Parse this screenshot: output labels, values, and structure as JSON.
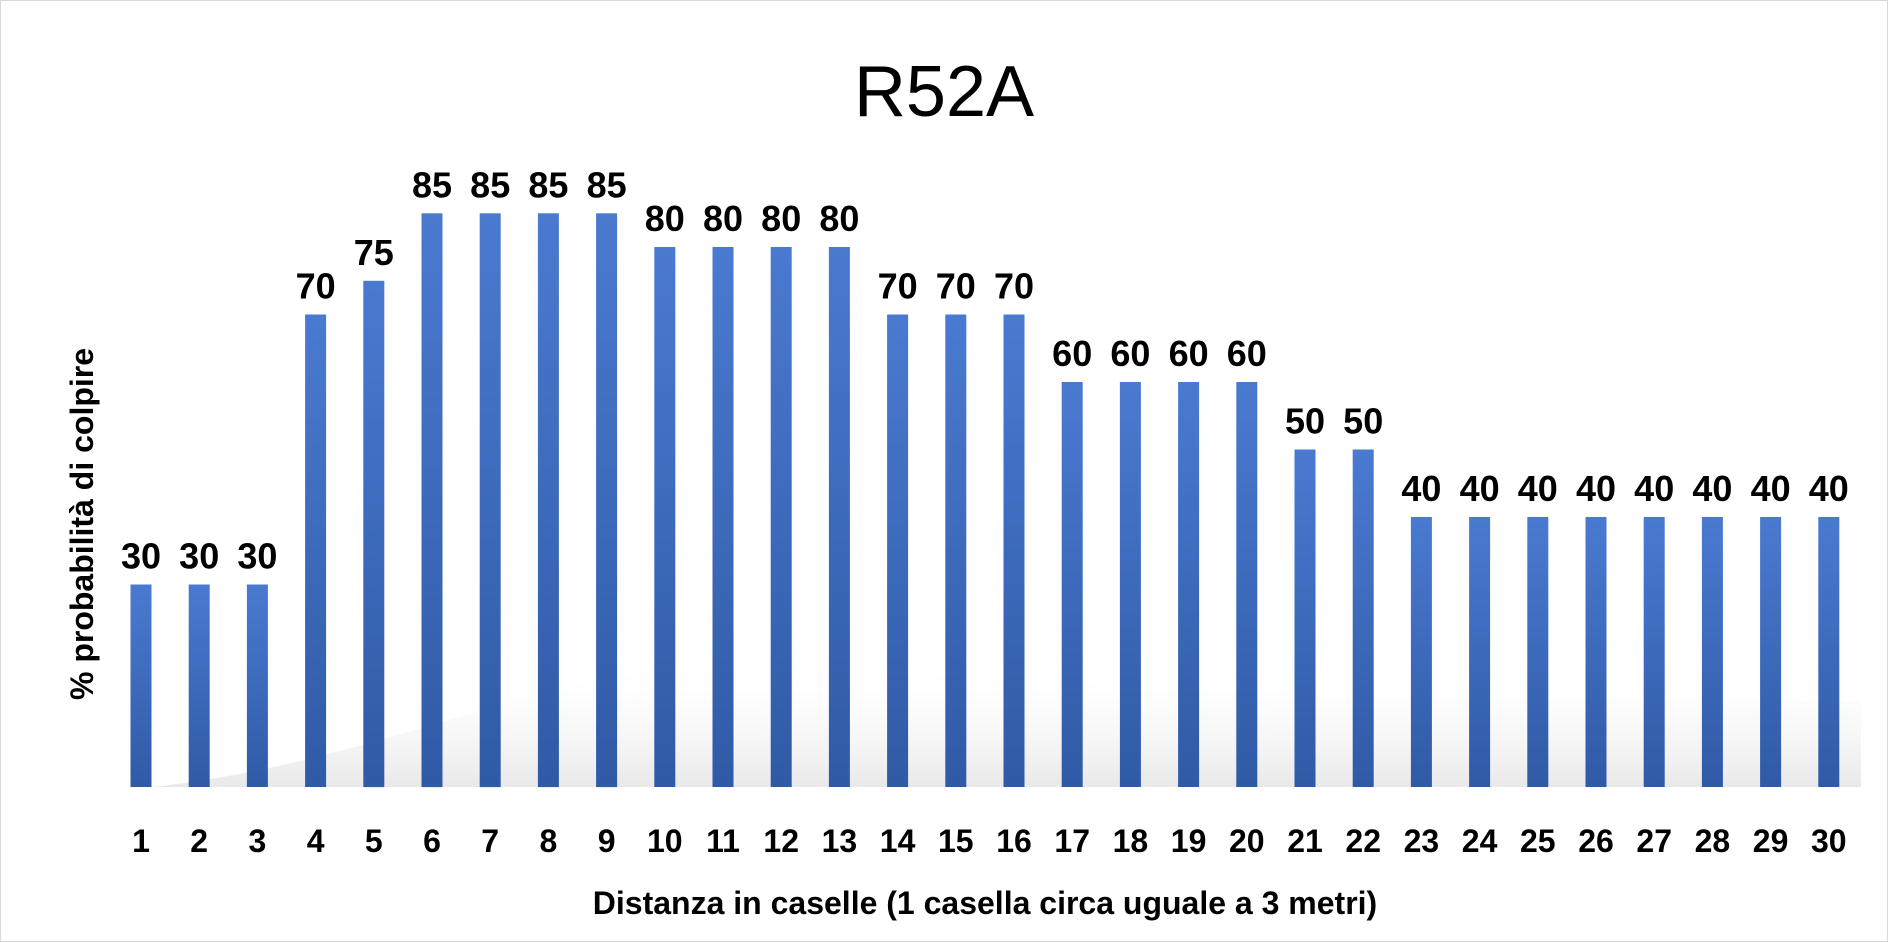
{
  "chart_data": {
    "type": "bar",
    "title": "R52A",
    "xlabel": "Distanza in caselle (1 casella circa uguale a 3 metri)",
    "ylabel": "% probabilità di colpire",
    "categories": [
      "1",
      "2",
      "3",
      "4",
      "5",
      "6",
      "7",
      "8",
      "9",
      "10",
      "11",
      "12",
      "13",
      "14",
      "15",
      "16",
      "17",
      "18",
      "19",
      "20",
      "21",
      "22",
      "23",
      "24",
      "25",
      "26",
      "27",
      "28",
      "29",
      "30"
    ],
    "values": [
      30,
      30,
      30,
      70,
      75,
      85,
      85,
      85,
      85,
      80,
      80,
      80,
      80,
      70,
      70,
      70,
      60,
      60,
      60,
      60,
      50,
      50,
      40,
      40,
      40,
      40,
      40,
      40,
      40,
      40
    ],
    "ylim": [
      0,
      85
    ],
    "grid": false,
    "legend": "none",
    "bar_color_top": "#4a7ad0",
    "bar_color_bottom": "#2f5aa6"
  }
}
